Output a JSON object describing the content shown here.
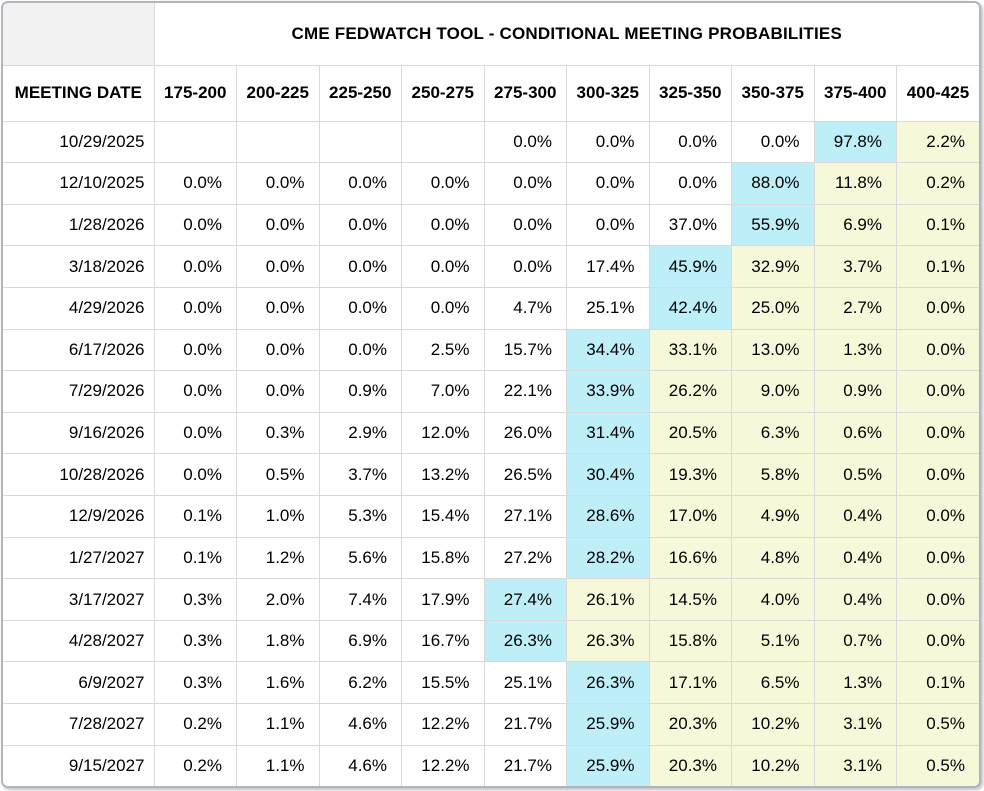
{
  "table": {
    "title": "CME FEDWATCH TOOL - CONDITIONAL MEETING PROBABILITIES",
    "meeting_date_header": "MEETING DATE",
    "rate_headers": [
      "175-200",
      "200-225",
      "225-250",
      "250-275",
      "275-300",
      "300-325",
      "325-350",
      "350-375",
      "375-400",
      "400-425"
    ],
    "rows": [
      {
        "date": "10/29/2025",
        "values": [
          "",
          "",
          "",
          "",
          "0.0%",
          "0.0%",
          "0.0%",
          "0.0%",
          "97.8%",
          "2.2%"
        ],
        "cyan_index": 8
      },
      {
        "date": "12/10/2025",
        "values": [
          "0.0%",
          "0.0%",
          "0.0%",
          "0.0%",
          "0.0%",
          "0.0%",
          "0.0%",
          "88.0%",
          "11.8%",
          "0.2%"
        ],
        "cyan_index": 7
      },
      {
        "date": "1/28/2026",
        "values": [
          "0.0%",
          "0.0%",
          "0.0%",
          "0.0%",
          "0.0%",
          "0.0%",
          "37.0%",
          "55.9%",
          "6.9%",
          "0.1%"
        ],
        "cyan_index": 7
      },
      {
        "date": "3/18/2026",
        "values": [
          "0.0%",
          "0.0%",
          "0.0%",
          "0.0%",
          "0.0%",
          "17.4%",
          "45.9%",
          "32.9%",
          "3.7%",
          "0.1%"
        ],
        "cyan_index": 6
      },
      {
        "date": "4/29/2026",
        "values": [
          "0.0%",
          "0.0%",
          "0.0%",
          "0.0%",
          "4.7%",
          "25.1%",
          "42.4%",
          "25.0%",
          "2.7%",
          "0.0%"
        ],
        "cyan_index": 6
      },
      {
        "date": "6/17/2026",
        "values": [
          "0.0%",
          "0.0%",
          "0.0%",
          "2.5%",
          "15.7%",
          "34.4%",
          "33.1%",
          "13.0%",
          "1.3%",
          "0.0%"
        ],
        "cyan_index": 5
      },
      {
        "date": "7/29/2026",
        "values": [
          "0.0%",
          "0.0%",
          "0.9%",
          "7.0%",
          "22.1%",
          "33.9%",
          "26.2%",
          "9.0%",
          "0.9%",
          "0.0%"
        ],
        "cyan_index": 5
      },
      {
        "date": "9/16/2026",
        "values": [
          "0.0%",
          "0.3%",
          "2.9%",
          "12.0%",
          "26.0%",
          "31.4%",
          "20.5%",
          "6.3%",
          "0.6%",
          "0.0%"
        ],
        "cyan_index": 5
      },
      {
        "date": "10/28/2026",
        "values": [
          "0.0%",
          "0.5%",
          "3.7%",
          "13.2%",
          "26.5%",
          "30.4%",
          "19.3%",
          "5.8%",
          "0.5%",
          "0.0%"
        ],
        "cyan_index": 5
      },
      {
        "date": "12/9/2026",
        "values": [
          "0.1%",
          "1.0%",
          "5.3%",
          "15.4%",
          "27.1%",
          "28.6%",
          "17.0%",
          "4.9%",
          "0.4%",
          "0.0%"
        ],
        "cyan_index": 5
      },
      {
        "date": "1/27/2027",
        "values": [
          "0.1%",
          "1.2%",
          "5.6%",
          "15.8%",
          "27.2%",
          "28.2%",
          "16.6%",
          "4.8%",
          "0.4%",
          "0.0%"
        ],
        "cyan_index": 5
      },
      {
        "date": "3/17/2027",
        "values": [
          "0.3%",
          "2.0%",
          "7.4%",
          "17.9%",
          "27.4%",
          "26.1%",
          "14.5%",
          "4.0%",
          "0.4%",
          "0.0%"
        ],
        "cyan_index": 4
      },
      {
        "date": "4/28/2027",
        "values": [
          "0.3%",
          "1.8%",
          "6.9%",
          "16.7%",
          "26.3%",
          "26.3%",
          "15.8%",
          "5.1%",
          "0.7%",
          "0.0%"
        ],
        "cyan_index": 4
      },
      {
        "date": "6/9/2027",
        "values": [
          "0.3%",
          "1.6%",
          "6.2%",
          "15.5%",
          "25.1%",
          "26.3%",
          "17.1%",
          "6.5%",
          "1.3%",
          "0.1%"
        ],
        "cyan_index": 5
      },
      {
        "date": "7/28/2027",
        "values": [
          "0.2%",
          "1.1%",
          "4.6%",
          "12.2%",
          "21.7%",
          "25.9%",
          "20.3%",
          "10.2%",
          "3.1%",
          "0.5%"
        ],
        "cyan_index": 5
      },
      {
        "date": "9/15/2027",
        "values": [
          "0.2%",
          "1.1%",
          "4.6%",
          "12.2%",
          "21.7%",
          "25.9%",
          "20.3%",
          "10.2%",
          "3.1%",
          "0.5%"
        ],
        "cyan_index": 5
      }
    ],
    "colors": {
      "cyan": "#beeef8",
      "yellow": "#f7f7da",
      "grid": "#d9d9d9",
      "border": "#b0b6bd",
      "corner": "#f2f2f2"
    }
  }
}
